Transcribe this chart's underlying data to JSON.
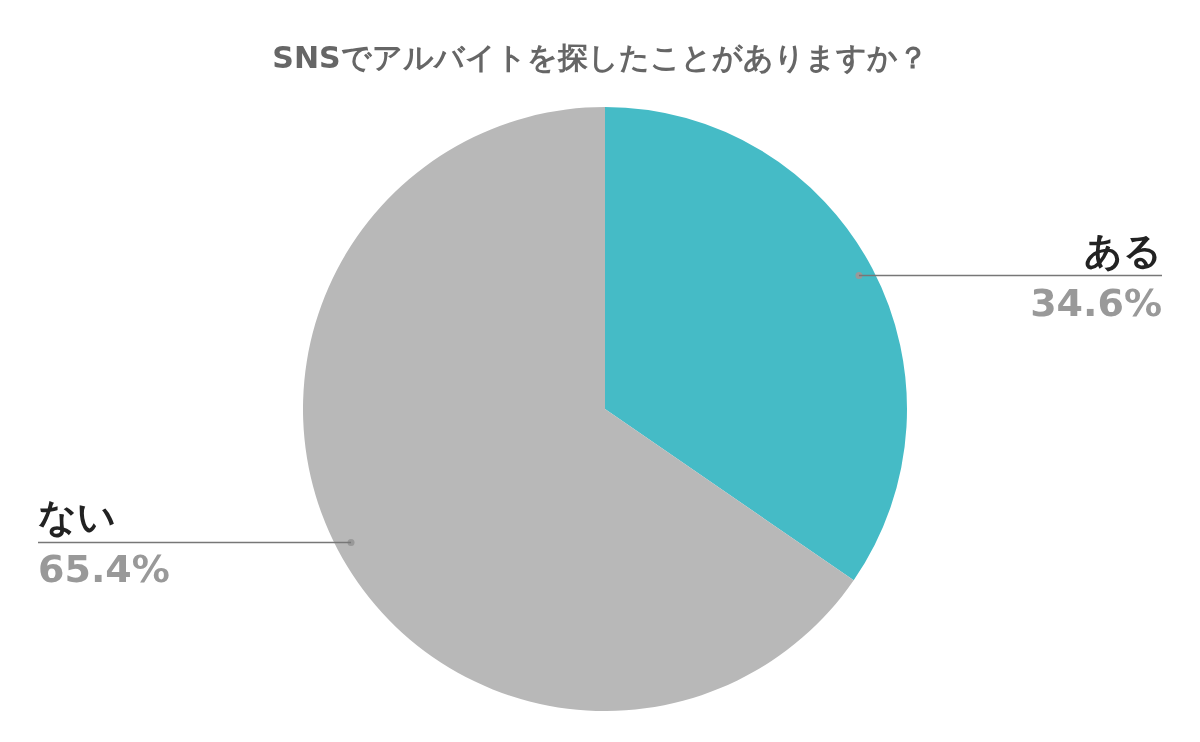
{
  "chart_data": {
    "type": "pie",
    "title": "SNSでアルバイトを探したことがありますか？",
    "categories": [
      "ある",
      "ない"
    ],
    "values": [
      34.6,
      65.4
    ],
    "colors": [
      "#45bbc6",
      "#b8b8b8"
    ],
    "value_labels": [
      "34.6%",
      "65.4%"
    ],
    "legend": false
  }
}
